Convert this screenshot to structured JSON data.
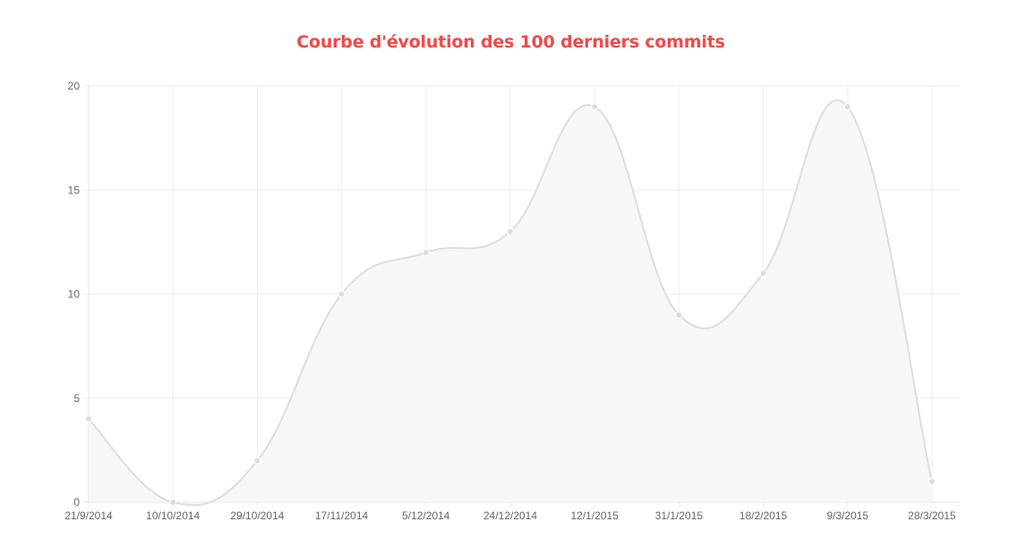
{
  "chart_data": {
    "type": "area",
    "title": "Courbe d'évolution des 100 derniers commits",
    "categories": [
      "21/9/2014",
      "10/10/2014",
      "29/10/2014",
      "17/11/2014",
      "5/12/2014",
      "24/12/2014",
      "12/1/2015",
      "31/1/2015",
      "18/2/2015",
      "9/3/2015",
      "28/3/2015"
    ],
    "values": [
      4,
      0,
      2,
      10,
      12,
      13,
      19,
      9,
      11,
      19,
      1
    ],
    "ylim": [
      0,
      20
    ],
    "yticks": [
      "0",
      "5",
      "10",
      "15",
      "20"
    ],
    "grid": true,
    "colors": {
      "title": "#f0494a",
      "line": "#dddddd",
      "fill": "#f7f7f7",
      "point": "#dddddd",
      "grid": "#eeeeee"
    }
  }
}
